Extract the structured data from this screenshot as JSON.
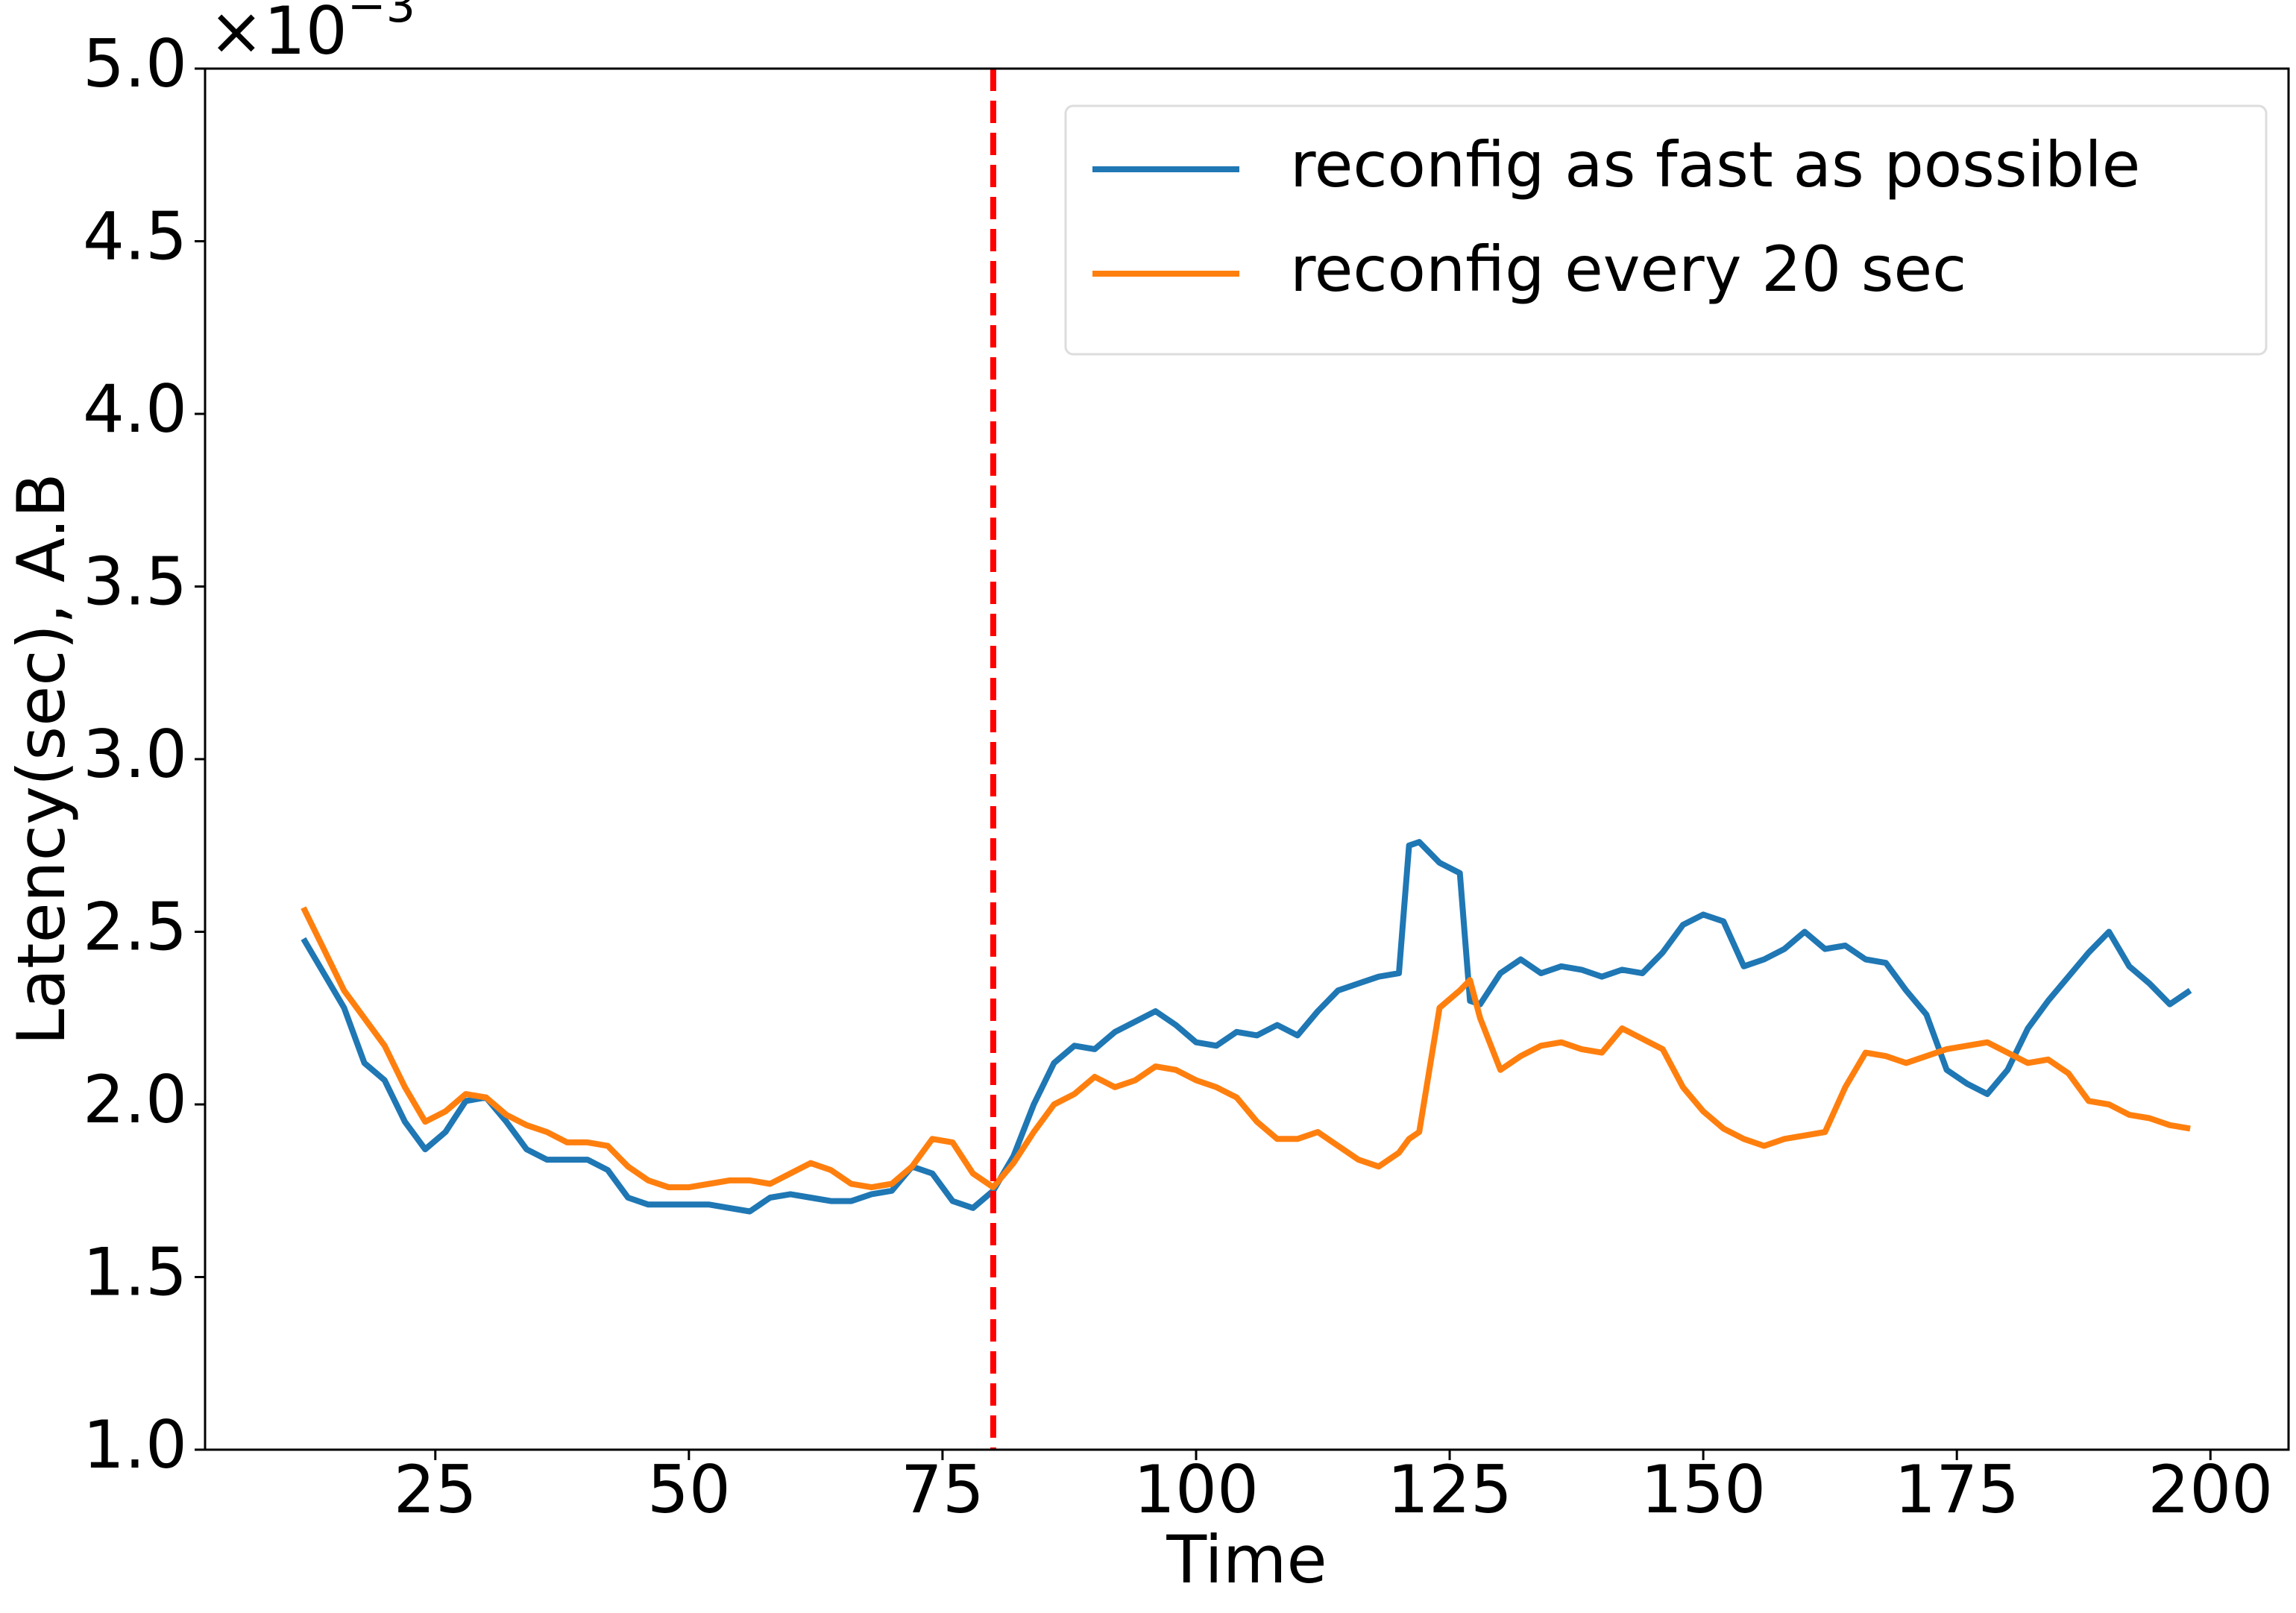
{
  "chart_data": {
    "type": "line",
    "xlabel": "Time",
    "ylabel": "Latency(sec), A.B",
    "y_offset_base": "×10",
    "y_offset_exponent": "−3",
    "xlim": [
      2.3,
      207.7
    ],
    "ylim": [
      1.0,
      5.0
    ],
    "xticks": [
      25,
      50,
      75,
      100,
      125,
      150,
      175,
      200
    ],
    "yticks": [
      {
        "value": 1.0,
        "label": "1.0"
      },
      1.5,
      {
        "value": 2.0,
        "label": "2.0"
      },
      2.5,
      {
        "value": 3.0,
        "label": "3.0"
      },
      3.5,
      {
        "value": 4.0,
        "label": "4.0"
      },
      4.5,
      {
        "value": 5.0,
        "label": "5.0"
      }
    ],
    "legend": "upper right",
    "vline": {
      "x": 80,
      "color": "#ff0000"
    },
    "x": [
      12,
      14,
      16,
      18,
      20,
      22,
      24,
      26,
      28,
      30,
      32,
      34,
      36,
      38,
      40,
      42,
      44,
      46,
      48,
      50,
      52,
      54,
      56,
      58,
      60,
      62,
      64,
      66,
      68,
      70,
      72,
      74,
      76,
      78,
      80,
      82,
      84,
      86,
      88,
      90,
      92,
      94,
      96,
      98,
      100,
      102,
      104,
      106,
      108,
      110,
      112,
      114,
      116,
      118,
      120,
      121,
      122,
      124,
      126,
      127,
      128,
      130,
      132,
      134,
      136,
      138,
      140,
      142,
      144,
      146,
      148,
      150,
      152,
      154,
      156,
      158,
      160,
      162,
      164,
      166,
      168,
      170,
      172,
      174,
      176,
      178,
      180,
      182,
      184,
      186,
      188,
      190,
      192,
      194,
      196,
      198
    ],
    "series": [
      {
        "name": "reconfig as fast as possible",
        "color": "#1f77b4",
        "values": [
          2.48,
          2.38,
          2.28,
          2.12,
          2.07,
          1.95,
          1.87,
          1.92,
          2.01,
          2.02,
          1.95,
          1.87,
          1.84,
          1.84,
          1.84,
          1.81,
          1.73,
          1.71,
          1.71,
          1.71,
          1.71,
          1.7,
          1.69,
          1.73,
          1.74,
          1.73,
          1.72,
          1.72,
          1.74,
          1.75,
          1.82,
          1.8,
          1.72,
          1.7,
          1.75,
          1.85,
          2.0,
          2.12,
          2.17,
          2.16,
          2.21,
          2.24,
          2.27,
          2.23,
          2.18,
          2.17,
          2.21,
          2.2,
          2.23,
          2.2,
          2.27,
          2.33,
          2.35,
          2.37,
          2.38,
          2.75,
          2.76,
          2.7,
          2.67,
          2.3,
          2.29,
          2.38,
          2.42,
          2.38,
          2.4,
          2.39,
          2.37,
          2.39,
          2.38,
          2.44,
          2.52,
          2.55,
          2.53,
          2.4,
          2.42,
          2.45,
          2.5,
          2.45,
          2.46,
          2.42,
          2.41,
          2.33,
          2.26,
          2.1,
          2.06,
          2.03,
          2.1,
          2.22,
          2.3,
          2.37,
          2.44,
          2.5,
          2.4,
          2.35,
          2.29,
          2.33
        ]
      },
      {
        "name": "reconfig every 20 sec",
        "color": "#ff7f0e",
        "values": [
          2.57,
          2.45,
          2.33,
          2.25,
          2.17,
          2.05,
          1.95,
          1.98,
          2.03,
          2.02,
          1.97,
          1.94,
          1.92,
          1.89,
          1.89,
          1.88,
          1.82,
          1.78,
          1.76,
          1.76,
          1.77,
          1.78,
          1.78,
          1.77,
          1.8,
          1.83,
          1.81,
          1.77,
          1.76,
          1.77,
          1.82,
          1.9,
          1.89,
          1.8,
          1.76,
          1.83,
          1.92,
          2.0,
          2.03,
          2.08,
          2.05,
          2.07,
          2.11,
          2.1,
          2.07,
          2.05,
          2.02,
          1.95,
          1.9,
          1.9,
          1.92,
          1.88,
          1.84,
          1.82,
          1.86,
          1.9,
          1.92,
          2.28,
          2.33,
          2.36,
          2.25,
          2.1,
          2.14,
          2.17,
          2.18,
          2.16,
          2.15,
          2.22,
          2.19,
          2.16,
          2.05,
          1.98,
          1.93,
          1.9,
          1.88,
          1.9,
          1.91,
          1.92,
          2.05,
          2.15,
          2.14,
          2.12,
          2.14,
          2.16,
          2.17,
          2.18,
          2.15,
          2.12,
          2.13,
          2.09,
          2.01,
          2.0,
          1.97,
          1.96,
          1.94,
          1.93
        ]
      }
    ]
  }
}
